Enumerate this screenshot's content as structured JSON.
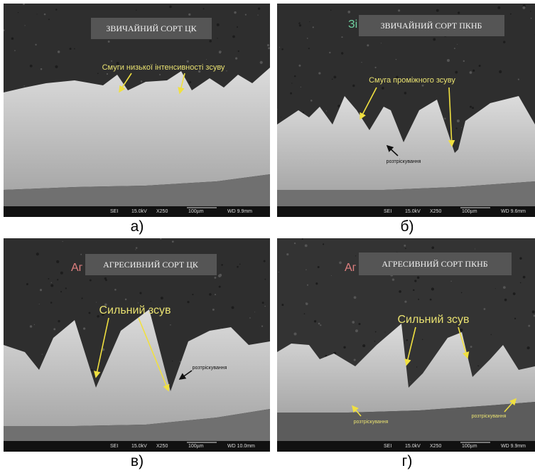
{
  "panels": [
    {
      "caption": "а)",
      "title": "ЗВИЧАЙНИЙ СОРТ ЦК",
      "annotations": [
        "Смуги низької інтенсивності зсуву"
      ],
      "scalebar": [
        "SEI",
        "15.0kV",
        "X250",
        "100µm",
        "WD 9.9mm"
      ]
    },
    {
      "caption": "б)",
      "title": "ЗВИЧАЙНИЙ СОРТ ПКНБ",
      "partial_label": "Зі",
      "annotations": [
        "Смуга проміжного зсуву",
        "розтріскування"
      ],
      "scalebar": [
        "SEI",
        "15.0kV",
        "X250",
        "100µm",
        "WD 9.6mm"
      ]
    },
    {
      "caption": "в)",
      "title": "АГРЕСИВНИЙ СОРТ ЦК",
      "partial_label": "Аг",
      "annotations": [
        "Сильний зсув",
        "розтріскування"
      ],
      "scalebar": [
        "SEI",
        "15.0kV",
        "X250",
        "100µm",
        "WD 10.0mm"
      ]
    },
    {
      "caption": "г)",
      "title": "АГРЕСИВНИЙ СОРТ ПКНБ",
      "partial_label": "Аг",
      "annotations": [
        "Сильний зсув",
        "розтріскування",
        "розтріскування"
      ],
      "scalebar": [
        "SEI",
        "15.0kV",
        "X250",
        "100µm",
        "WD 9.9mm"
      ]
    }
  ]
}
